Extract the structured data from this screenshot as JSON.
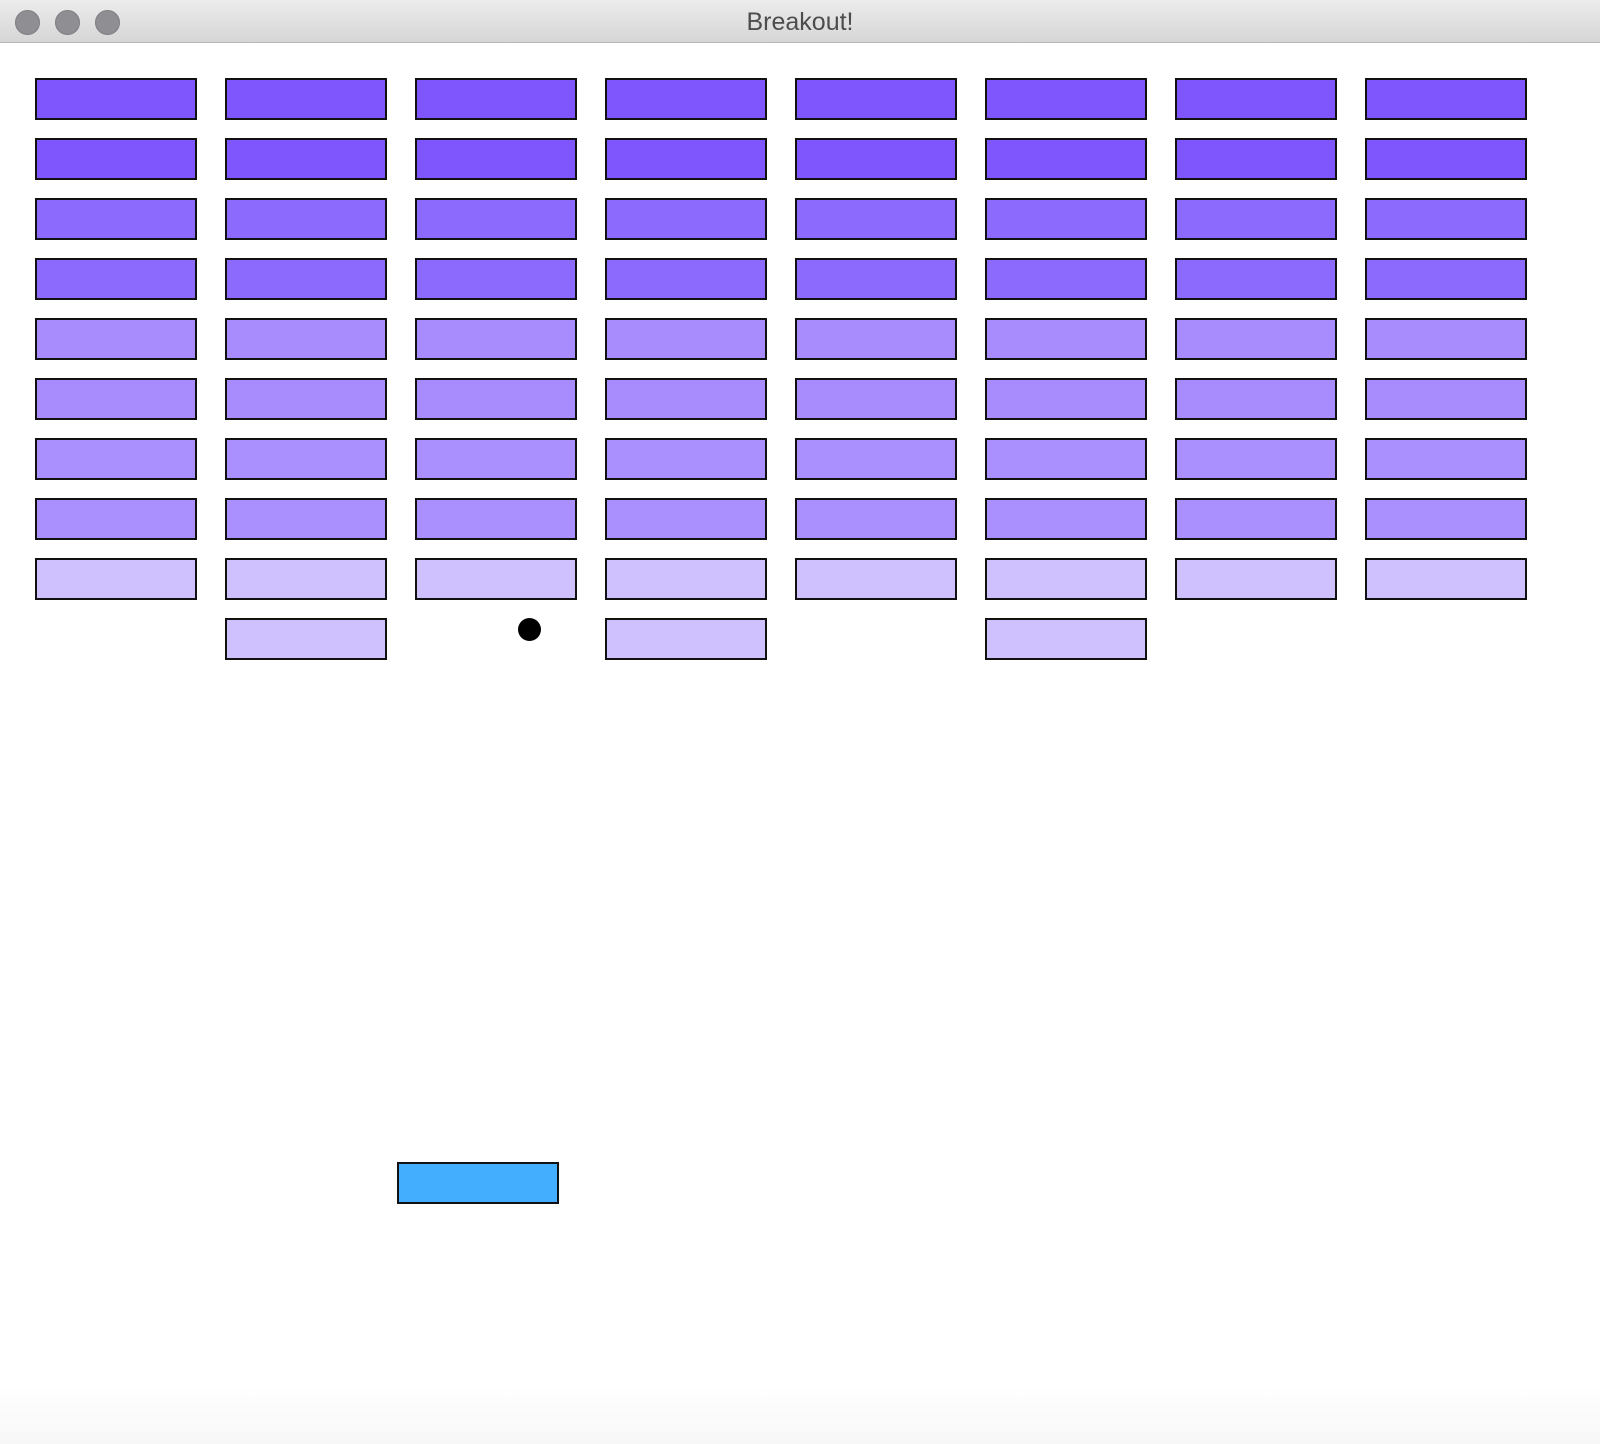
{
  "window": {
    "title": "Breakout!",
    "controls": [
      "close",
      "minimize",
      "zoom"
    ]
  },
  "colors": {
    "row_dark": "#7f56fe",
    "row_mid_dark": "#8d6afe",
    "row_mid": "#a88cfe",
    "row_mid_light": "#aa90fe",
    "row_light": "#cfc0fe",
    "paddle": "#44aefe",
    "ball": "#000000",
    "outline": "#111111"
  },
  "bricks": {
    "columns": 8,
    "rows": [
      {
        "color": "row_dark",
        "present": [
          1,
          1,
          1,
          1,
          1,
          1,
          1,
          1
        ]
      },
      {
        "color": "row_dark",
        "present": [
          1,
          1,
          1,
          1,
          1,
          1,
          1,
          1
        ]
      },
      {
        "color": "row_mid_dark",
        "present": [
          1,
          1,
          1,
          1,
          1,
          1,
          1,
          1
        ]
      },
      {
        "color": "row_mid_dark",
        "present": [
          1,
          1,
          1,
          1,
          1,
          1,
          1,
          1
        ]
      },
      {
        "color": "row_mid",
        "present": [
          1,
          1,
          1,
          1,
          1,
          1,
          1,
          1
        ]
      },
      {
        "color": "row_mid",
        "present": [
          1,
          1,
          1,
          1,
          1,
          1,
          1,
          1
        ]
      },
      {
        "color": "row_mid_light",
        "present": [
          1,
          1,
          1,
          1,
          1,
          1,
          1,
          1
        ]
      },
      {
        "color": "row_mid_light",
        "present": [
          1,
          1,
          1,
          1,
          1,
          1,
          1,
          1
        ]
      },
      {
        "color": "row_light",
        "present": [
          1,
          1,
          1,
          1,
          1,
          1,
          1,
          1
        ]
      },
      {
        "color": "row_light",
        "present": [
          0,
          1,
          0,
          1,
          0,
          1,
          0,
          0
        ]
      }
    ]
  }
}
